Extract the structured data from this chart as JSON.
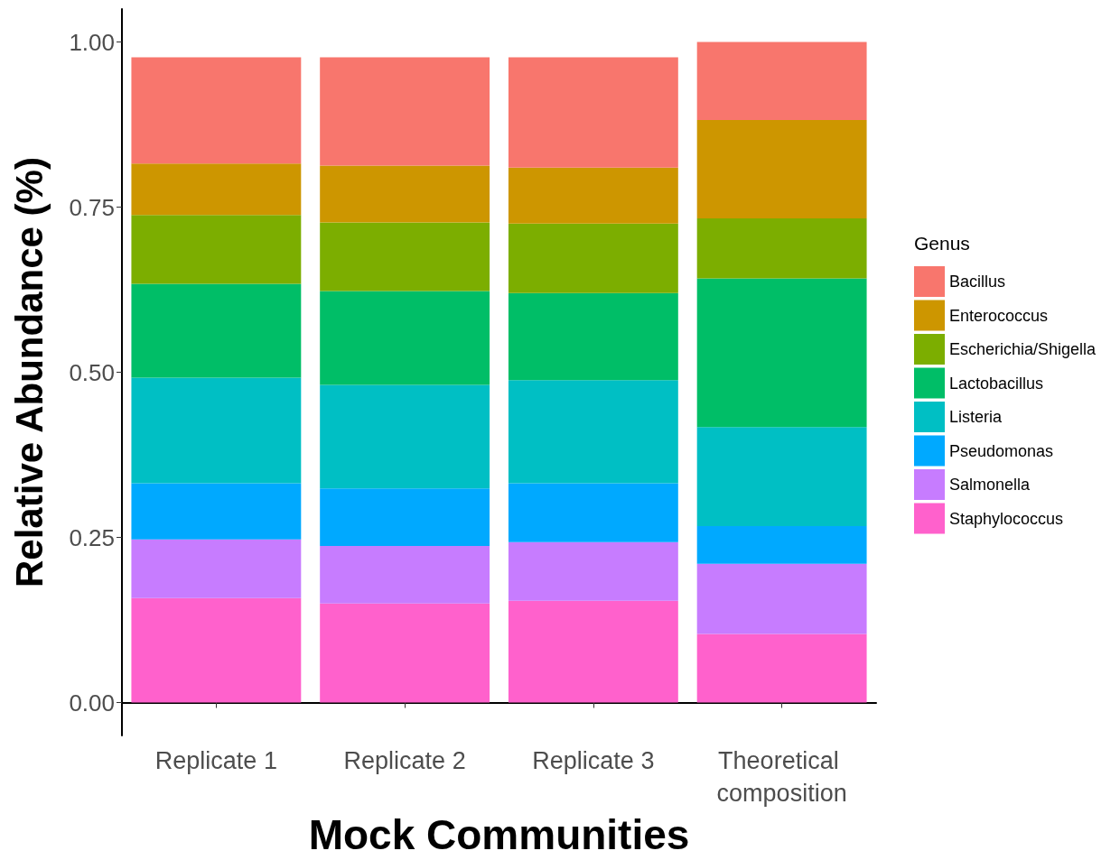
{
  "chart_data": {
    "type": "bar",
    "stacked": true,
    "xlabel": "Mock Communities",
    "ylabel": "Relative Abundance (%)",
    "legend_title": "Genus",
    "categories": [
      "Replicate 1",
      "Replicate 2",
      "Replicate 3",
      "Theoretical composition"
    ],
    "series": [
      {
        "name": "Staphylococcus",
        "color": "#ff61cc",
        "values": [
          0.158,
          0.15,
          0.154,
          0.104
        ]
      },
      {
        "name": "Salmonella",
        "color": "#c77cff",
        "values": [
          0.089,
          0.087,
          0.089,
          0.106
        ]
      },
      {
        "name": "Pseudomonas",
        "color": "#00a9ff",
        "values": [
          0.085,
          0.087,
          0.089,
          0.057
        ]
      },
      {
        "name": "Listeria",
        "color": "#00bfc4",
        "values": [
          0.16,
          0.157,
          0.156,
          0.15
        ]
      },
      {
        "name": "Lactobacillus",
        "color": "#00be67",
        "values": [
          0.142,
          0.142,
          0.132,
          0.225
        ]
      },
      {
        "name": "Escherichia/Shigella",
        "color": "#7cae00",
        "values": [
          0.104,
          0.104,
          0.105,
          0.091
        ]
      },
      {
        "name": "Enterococcus",
        "color": "#cd9600",
        "values": [
          0.078,
          0.086,
          0.085,
          0.149
        ]
      },
      {
        "name": "Bacillus",
        "color": "#f8766d",
        "values": [
          0.161,
          0.164,
          0.167,
          0.118
        ]
      }
    ],
    "ylim": [
      -0.05,
      1.05
    ],
    "yticks": [
      {
        "value": 0,
        "label": "0.00"
      },
      {
        "value": 0.25,
        "label": "0.25"
      },
      {
        "value": 0.5,
        "label": "0.50"
      },
      {
        "value": 0.75,
        "label": "0.75"
      },
      {
        "value": 1,
        "label": "1.00"
      }
    ],
    "grid": false,
    "legend": "right"
  }
}
